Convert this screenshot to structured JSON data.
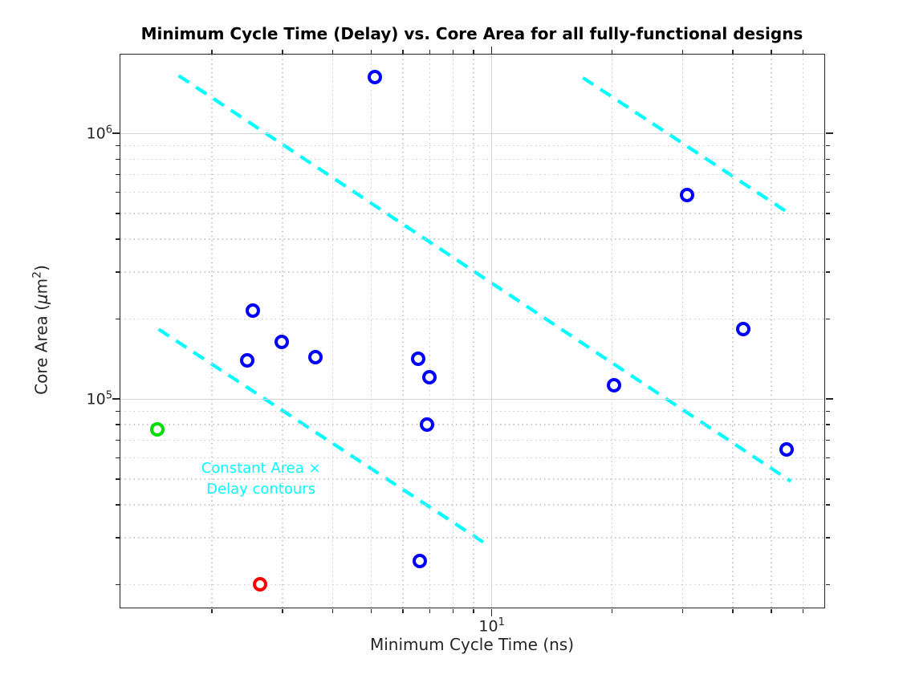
{
  "title": "Minimum Cycle Time (Delay) vs. Core Area for all fully-functional designs",
  "chart_data": {
    "type": "scatter",
    "title": "Minimum Cycle Time (Delay) vs. Core Area for all fully-functional designs",
    "xlabel": "Minimum Cycle Time (ns)",
    "ylabel": "Core Area (μm²)",
    "ylabel_parts": {
      "p1": "Core Area (",
      "mu": "μ",
      "m": "m",
      "sup": "2",
      "p3": ")"
    },
    "x_axis": {
      "scale": "log",
      "min": 1.18,
      "max": 67.8,
      "major_ticks": [
        {
          "value": 10,
          "base": "10",
          "exp": "1"
        }
      ],
      "minor_ticks": [
        2,
        3,
        4,
        5,
        6,
        7,
        8,
        9,
        20,
        30,
        40,
        50,
        60
      ]
    },
    "y_axis": {
      "scale": "log",
      "min": 16400,
      "max": 1980000,
      "major_ticks": [
        {
          "value": 100000,
          "base": "10",
          "exp": "5"
        },
        {
          "value": 1000000,
          "base": "10",
          "exp": "6"
        }
      ],
      "minor_ticks": [
        20000,
        30000,
        40000,
        50000,
        60000,
        70000,
        80000,
        90000,
        200000,
        300000,
        400000,
        500000,
        600000,
        700000,
        800000,
        900000
      ]
    },
    "grid": {
      "major": true,
      "minor": true
    },
    "series": [
      {
        "color": "#0000ff",
        "marker": "circle",
        "points": [
          [
            5.1,
            1630000
          ],
          [
            30.8,
            585000
          ],
          [
            2.53,
            215000
          ],
          [
            2.98,
            164000
          ],
          [
            2.45,
            140000
          ],
          [
            3.63,
            144000
          ],
          [
            6.56,
            142000
          ],
          [
            7.0,
            121000
          ],
          [
            6.88,
            80000
          ],
          [
            20.2,
            113000
          ],
          [
            42.5,
            183000
          ],
          [
            54.6,
            64500
          ],
          [
            6.6,
            24500
          ]
        ]
      },
      {
        "color": "#00dd00",
        "marker": "circle",
        "points": [
          [
            1.46,
            77000
          ]
        ]
      },
      {
        "color": "#ff0000",
        "marker": "circle",
        "points": [
          [
            2.64,
            20000
          ]
        ]
      }
    ],
    "contours": {
      "color": "#00ffff",
      "style": "dashed",
      "lines": [
        {
          "x1": 1.65,
          "y1": 1650000,
          "x2": 55.9,
          "y2": 49000
        },
        {
          "x1": 1.47,
          "y1": 183000,
          "x2": 9.77,
          "y2": 28200
        },
        {
          "x1": 16.9,
          "y1": 1620000,
          "x2": 54.8,
          "y2": 505000
        }
      ]
    },
    "annotation": {
      "lines": [
        "Constant Area ×",
        "Delay contours"
      ],
      "x": 2.65,
      "y": 50000,
      "color": "#00ffff"
    }
  },
  "colors": {
    "axis": "#262626",
    "grid_major": "#d4d4d4",
    "grid_minor": "#c9c9c9",
    "background": "#ffffff",
    "contour": "#00ffff"
  }
}
